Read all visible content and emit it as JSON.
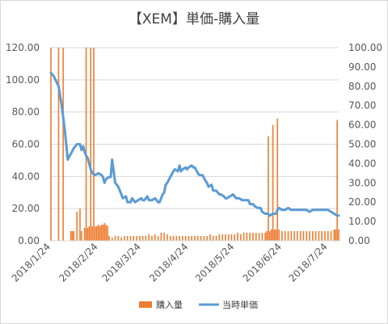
{
  "chart_data": {
    "type": "bar+line",
    "title": "【XEM】単価-購入量",
    "left_axis": {
      "min": 0,
      "max": 120,
      "step": 20,
      "tick_labels": [
        "0.00",
        "20.00",
        "40.00",
        "60.00",
        "80.00",
        "100.00",
        "120.00"
      ]
    },
    "right_axis": {
      "min": 0,
      "max": 100,
      "step": 10,
      "tick_labels": [
        "0.00",
        "10.00",
        "20.00",
        "30.00",
        "40.00",
        "50.00",
        "60.00",
        "70.00",
        "80.00",
        "90.00",
        "100.00"
      ]
    },
    "x_axis": {
      "start": "2018/1/24",
      "end": "2018/7/31",
      "tick_labels": [
        "2018/1/24",
        "2018/2/24",
        "2018/3/24",
        "2018/4/24",
        "2018/5/24",
        "2018/6/24",
        "2018/7/24"
      ]
    },
    "grid": "horizontal",
    "legend": {
      "position": "bottom",
      "entries": [
        "購入量",
        "当時単価"
      ]
    },
    "colors": {
      "bar": "#ed7d31",
      "line": "#5b9bd5",
      "grid": "#d9d9d9",
      "text": "#595959"
    },
    "series": [
      {
        "name": "購入量",
        "type": "bar",
        "axis": "left",
        "points": [
          [
            "2018-01-24",
            120
          ],
          [
            "2018-01-29",
            120
          ],
          [
            "2018-02-01",
            120
          ],
          [
            "2018-02-06",
            6
          ],
          [
            "2018-02-07",
            6
          ],
          [
            "2018-02-08",
            6
          ],
          [
            "2018-02-10",
            18
          ],
          [
            "2018-02-12",
            20
          ],
          [
            "2018-02-13",
            6
          ],
          [
            "2018-02-15",
            8
          ],
          [
            "2018-02-16",
            120
          ],
          [
            "2018-02-17",
            8
          ],
          [
            "2018-02-18",
            9
          ],
          [
            "2018-02-19",
            120
          ],
          [
            "2018-02-20",
            9
          ],
          [
            "2018-02-21",
            120
          ],
          [
            "2018-02-22",
            9
          ],
          [
            "2018-02-23",
            9
          ],
          [
            "2018-02-24",
            10
          ],
          [
            "2018-02-25",
            9
          ],
          [
            "2018-02-26",
            10
          ],
          [
            "2018-02-27",
            10
          ],
          [
            "2018-02-28",
            11
          ],
          [
            "2018-03-01",
            10
          ],
          [
            "2018-03-02",
            9
          ],
          [
            "2018-03-03",
            3
          ],
          [
            "2018-03-05",
            2
          ],
          [
            "2018-03-07",
            3
          ],
          [
            "2018-03-09",
            3
          ],
          [
            "2018-03-11",
            2
          ],
          [
            "2018-03-13",
            3
          ],
          [
            "2018-03-15",
            3
          ],
          [
            "2018-03-17",
            3
          ],
          [
            "2018-03-19",
            3
          ],
          [
            "2018-03-21",
            3
          ],
          [
            "2018-03-23",
            3
          ],
          [
            "2018-03-25",
            3
          ],
          [
            "2018-03-27",
            3
          ],
          [
            "2018-03-29",
            4
          ],
          [
            "2018-03-31",
            3
          ],
          [
            "2018-04-02",
            4
          ],
          [
            "2018-04-04",
            3
          ],
          [
            "2018-04-06",
            5
          ],
          [
            "2018-04-08",
            5
          ],
          [
            "2018-04-10",
            4
          ],
          [
            "2018-04-12",
            3
          ],
          [
            "2018-04-14",
            3
          ],
          [
            "2018-04-16",
            3
          ],
          [
            "2018-04-18",
            3
          ],
          [
            "2018-04-20",
            3
          ],
          [
            "2018-04-22",
            3
          ],
          [
            "2018-04-24",
            3
          ],
          [
            "2018-04-26",
            3
          ],
          [
            "2018-04-28",
            3
          ],
          [
            "2018-04-30",
            3
          ],
          [
            "2018-05-02",
            3
          ],
          [
            "2018-05-04",
            3
          ],
          [
            "2018-05-06",
            3
          ],
          [
            "2018-05-08",
            4
          ],
          [
            "2018-05-10",
            3
          ],
          [
            "2018-05-12",
            3
          ],
          [
            "2018-05-14",
            4
          ],
          [
            "2018-05-16",
            4
          ],
          [
            "2018-05-18",
            4
          ],
          [
            "2018-05-20",
            4
          ],
          [
            "2018-05-22",
            4
          ],
          [
            "2018-05-24",
            4
          ],
          [
            "2018-05-26",
            5
          ],
          [
            "2018-05-28",
            4
          ],
          [
            "2018-05-30",
            5
          ],
          [
            "2018-06-01",
            5
          ],
          [
            "2018-06-03",
            5
          ],
          [
            "2018-06-05",
            5
          ],
          [
            "2018-06-07",
            5
          ],
          [
            "2018-06-09",
            5
          ],
          [
            "2018-06-11",
            5
          ],
          [
            "2018-06-13",
            5
          ],
          [
            "2018-06-14",
            6
          ],
          [
            "2018-06-15",
            65
          ],
          [
            "2018-06-16",
            6
          ],
          [
            "2018-06-17",
            7
          ],
          [
            "2018-06-18",
            72
          ],
          [
            "2018-06-19",
            7
          ],
          [
            "2018-06-20",
            7
          ],
          [
            "2018-06-21",
            76
          ],
          [
            "2018-06-22",
            7
          ],
          [
            "2018-06-24",
            6
          ],
          [
            "2018-06-26",
            6
          ],
          [
            "2018-06-28",
            6
          ],
          [
            "2018-06-30",
            6
          ],
          [
            "2018-07-02",
            6
          ],
          [
            "2018-07-04",
            6
          ],
          [
            "2018-07-06",
            6
          ],
          [
            "2018-07-08",
            6
          ],
          [
            "2018-07-10",
            6
          ],
          [
            "2018-07-12",
            6
          ],
          [
            "2018-07-14",
            6
          ],
          [
            "2018-07-16",
            6
          ],
          [
            "2018-07-18",
            6
          ],
          [
            "2018-07-20",
            6
          ],
          [
            "2018-07-22",
            6
          ],
          [
            "2018-07-24",
            6
          ],
          [
            "2018-07-26",
            6
          ],
          [
            "2018-07-28",
            7
          ],
          [
            "2018-07-29",
            7
          ],
          [
            "2018-07-30",
            75
          ],
          [
            "2018-07-31",
            7
          ]
        ]
      },
      {
        "name": "当時単価",
        "type": "line",
        "axis": "right",
        "points": [
          [
            "2018-01-24",
            87
          ],
          [
            "2018-01-26",
            85
          ],
          [
            "2018-01-29",
            80
          ],
          [
            "2018-01-31",
            70
          ],
          [
            "2018-02-02",
            58
          ],
          [
            "2018-02-04",
            42
          ],
          [
            "2018-02-06",
            45
          ],
          [
            "2018-02-08",
            48
          ],
          [
            "2018-02-10",
            50
          ],
          [
            "2018-02-12",
            50
          ],
          [
            "2018-02-13",
            47
          ],
          [
            "2018-02-14",
            49
          ],
          [
            "2018-02-15",
            46
          ],
          [
            "2018-02-16",
            44
          ],
          [
            "2018-02-17",
            43
          ],
          [
            "2018-02-18",
            40
          ],
          [
            "2018-02-19",
            37
          ],
          [
            "2018-02-20",
            35
          ],
          [
            "2018-02-22",
            34
          ],
          [
            "2018-02-24",
            35
          ],
          [
            "2018-02-26",
            34
          ],
          [
            "2018-02-27",
            33
          ],
          [
            "2018-02-28",
            30
          ],
          [
            "2018-03-01",
            32
          ],
          [
            "2018-03-03",
            33
          ],
          [
            "2018-03-04",
            33
          ],
          [
            "2018-03-05",
            42
          ],
          [
            "2018-03-06",
            36
          ],
          [
            "2018-03-07",
            30
          ],
          [
            "2018-03-09",
            28
          ],
          [
            "2018-03-11",
            24
          ],
          [
            "2018-03-12",
            22
          ],
          [
            "2018-03-14",
            23
          ],
          [
            "2018-03-15",
            20
          ],
          [
            "2018-03-17",
            20
          ],
          [
            "2018-03-18",
            22
          ],
          [
            "2018-03-20",
            20
          ],
          [
            "2018-03-22",
            21
          ],
          [
            "2018-03-24",
            22
          ],
          [
            "2018-03-25",
            21
          ],
          [
            "2018-03-26",
            21
          ],
          [
            "2018-03-28",
            23
          ],
          [
            "2018-03-29",
            21
          ],
          [
            "2018-03-31",
            21
          ],
          [
            "2018-04-02",
            22
          ],
          [
            "2018-04-04",
            20
          ],
          [
            "2018-04-05",
            20
          ],
          [
            "2018-04-07",
            24
          ],
          [
            "2018-04-08",
            25
          ],
          [
            "2018-04-09",
            29
          ],
          [
            "2018-04-10",
            30
          ],
          [
            "2018-04-12",
            33
          ],
          [
            "2018-04-14",
            36
          ],
          [
            "2018-04-15",
            37
          ],
          [
            "2018-04-17",
            36
          ],
          [
            "2018-04-18",
            39
          ],
          [
            "2018-04-19",
            36
          ],
          [
            "2018-04-20",
            37
          ],
          [
            "2018-04-22",
            38
          ],
          [
            "2018-04-23",
            37
          ],
          [
            "2018-04-24",
            38
          ],
          [
            "2018-04-26",
            39
          ],
          [
            "2018-04-27",
            38
          ],
          [
            "2018-04-28",
            38
          ],
          [
            "2018-04-30",
            35
          ],
          [
            "2018-05-01",
            34
          ],
          [
            "2018-05-03",
            34
          ],
          [
            "2018-05-05",
            31
          ],
          [
            "2018-05-06",
            30
          ],
          [
            "2018-05-07",
            28
          ],
          [
            "2018-05-09",
            29
          ],
          [
            "2018-05-10",
            26
          ],
          [
            "2018-05-12",
            26
          ],
          [
            "2018-05-14",
            24
          ],
          [
            "2018-05-15",
            24
          ],
          [
            "2018-05-17",
            23
          ],
          [
            "2018-05-18",
            22
          ],
          [
            "2018-05-19",
            22
          ],
          [
            "2018-05-21",
            23
          ],
          [
            "2018-05-23",
            24
          ],
          [
            "2018-05-25",
            22
          ],
          [
            "2018-05-27",
            22
          ],
          [
            "2018-05-29",
            21
          ],
          [
            "2018-05-31",
            21
          ],
          [
            "2018-06-02",
            21
          ],
          [
            "2018-06-03",
            19
          ],
          [
            "2018-06-05",
            19
          ],
          [
            "2018-06-06",
            18
          ],
          [
            "2018-06-08",
            17
          ],
          [
            "2018-06-10",
            17
          ],
          [
            "2018-06-11",
            15
          ],
          [
            "2018-06-13",
            14
          ],
          [
            "2018-06-15",
            14
          ],
          [
            "2018-06-16",
            13
          ],
          [
            "2018-06-18",
            14
          ],
          [
            "2018-06-20",
            14
          ],
          [
            "2018-06-21",
            16
          ],
          [
            "2018-06-22",
            17
          ],
          [
            "2018-06-24",
            16
          ],
          [
            "2018-06-26",
            16
          ],
          [
            "2018-06-28",
            17
          ],
          [
            "2018-06-30",
            16
          ],
          [
            "2018-07-02",
            16
          ],
          [
            "2018-07-04",
            16
          ],
          [
            "2018-07-06",
            16
          ],
          [
            "2018-07-08",
            16
          ],
          [
            "2018-07-10",
            16
          ],
          [
            "2018-07-12",
            15
          ],
          [
            "2018-07-14",
            16
          ],
          [
            "2018-07-16",
            16
          ],
          [
            "2018-07-18",
            16
          ],
          [
            "2018-07-20",
            16
          ],
          [
            "2018-07-22",
            16
          ],
          [
            "2018-07-24",
            16
          ],
          [
            "2018-07-26",
            15
          ],
          [
            "2018-07-28",
            14
          ],
          [
            "2018-07-30",
            13
          ],
          [
            "2018-07-31",
            13
          ]
        ]
      }
    ]
  }
}
